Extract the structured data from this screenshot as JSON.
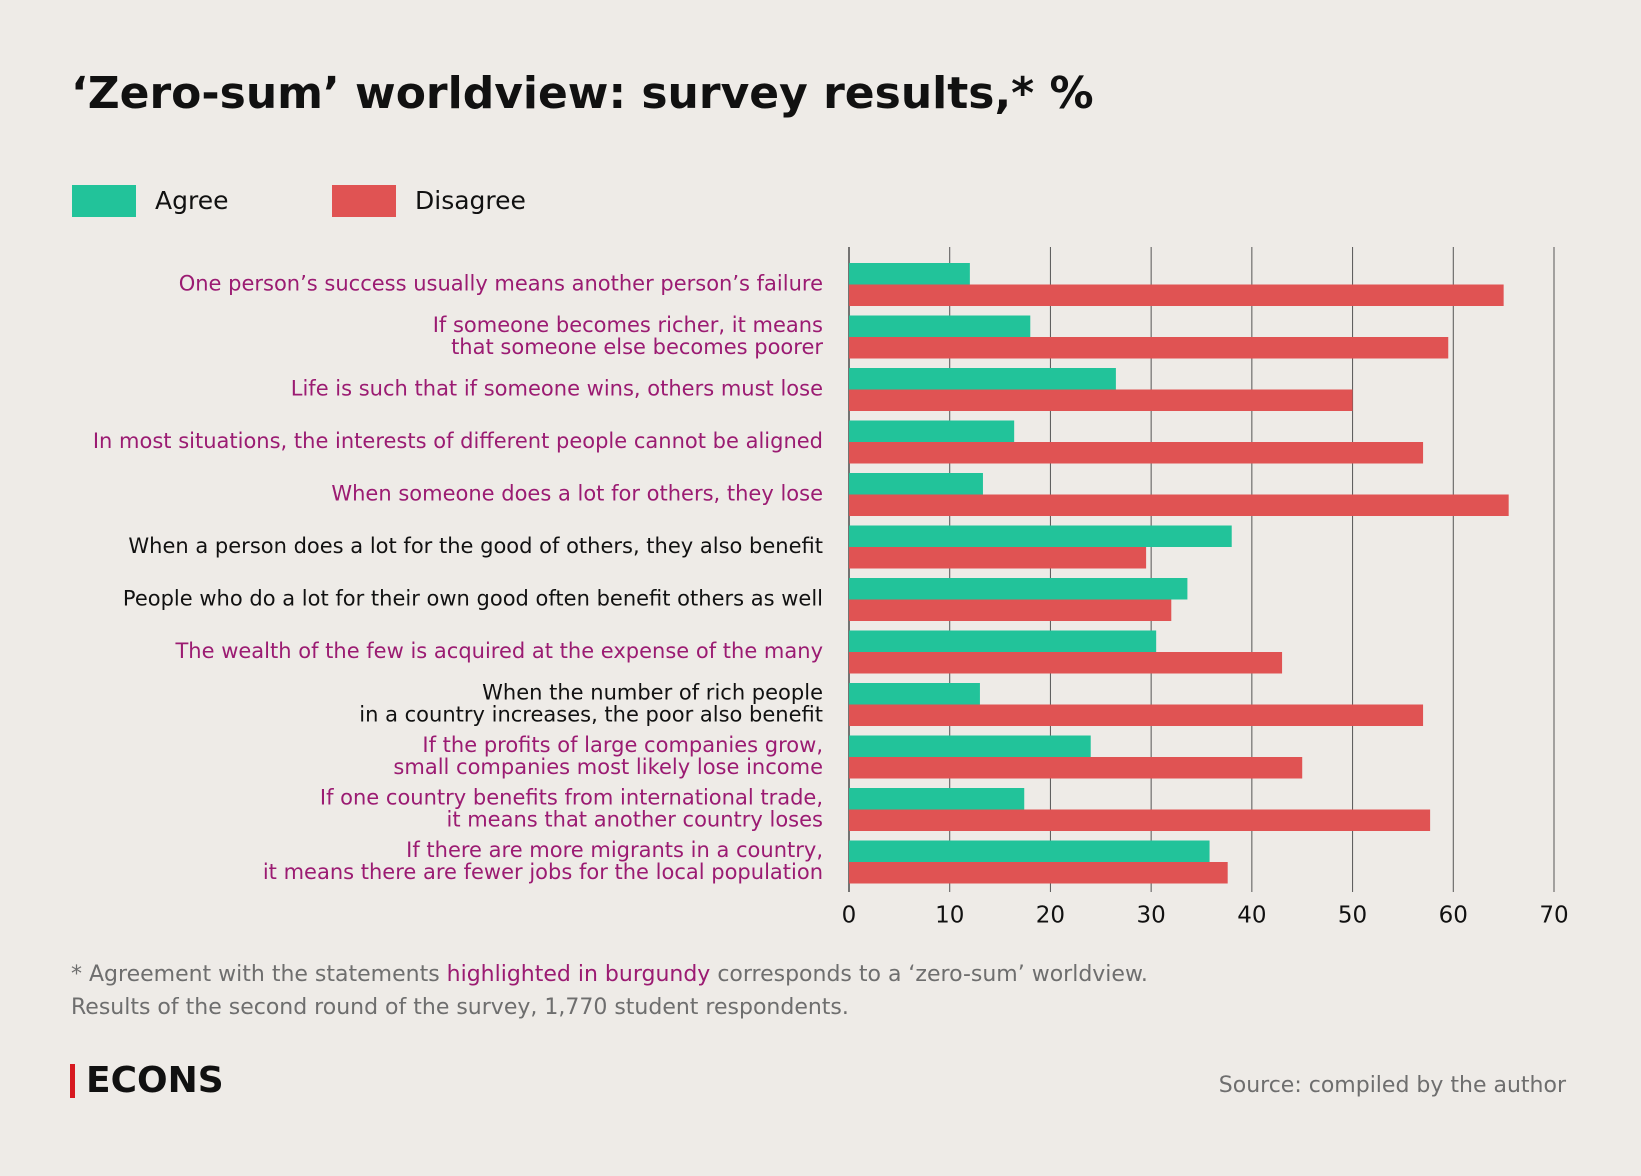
{
  "chart_data": {
    "type": "barh",
    "title": "‘Zero-sum’ worldview: survey results,* %",
    "categories": [
      [
        "One person’s success usually means another person’s failure"
      ],
      [
        "If someone becomes richer, it means",
        "that someone else becomes poorer"
      ],
      [
        "Life is such that if someone wins, others must lose"
      ],
      [
        "In most situations, the interests of different people cannot be aligned"
      ],
      [
        "When someone does a lot for others, they lose"
      ],
      [
        "When a person does a lot for the good of others, they also benefit"
      ],
      [
        "People who do a lot for their own good often benefit others as well"
      ],
      [
        "The wealth of the few is acquired at the expense of the many"
      ],
      [
        "When the number of rich people",
        "in a country increases, the poor also benefit"
      ],
      [
        "If the profits of large companies grow,",
        "small companies most likely lose income"
      ],
      [
        "If one country benefits from international trade,",
        "it means that another country loses"
      ],
      [
        "If there are more migrants in a country,",
        "it means there are fewer jobs for the local population"
      ]
    ],
    "highlighted": [
      true,
      true,
      true,
      true,
      true,
      false,
      false,
      true,
      false,
      true,
      true,
      true
    ],
    "highlight_color": "#9b1b72",
    "label_color": "#111111",
    "series": [
      {
        "name": "Agree",
        "color": "#22c39a",
        "values": [
          12,
          18,
          26.5,
          16.4,
          13.3,
          38,
          33.6,
          30.5,
          13,
          24,
          17.4,
          35.8
        ]
      },
      {
        "name": "Disagree",
        "color": "#e05353",
        "values": [
          65,
          59.5,
          50,
          57,
          65.5,
          29.5,
          32,
          43,
          57,
          45,
          57.7,
          37.6
        ]
      }
    ],
    "xlim": [
      0,
      70
    ],
    "xticks": [
      0,
      10,
      20,
      30,
      40,
      50,
      60,
      70
    ],
    "grid": true,
    "footnote": {
      "before": "* Agreement with the statements ",
      "highlight": "highlighted in burgundy",
      "after": " corresponds to a ‘zero-sum’ worldview.",
      "line2": "Results of the second round of the survey, 1,770 student respondents."
    },
    "logo": "ECONS",
    "source": "Source: compiled by the author"
  }
}
